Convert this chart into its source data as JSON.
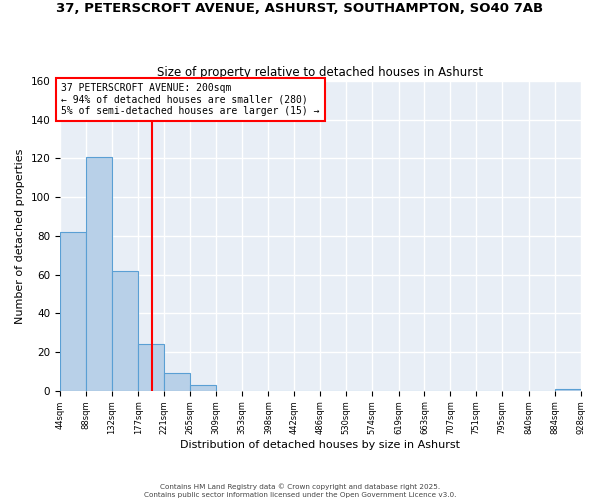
{
  "title": "37, PETERSCROFT AVENUE, ASHURST, SOUTHAMPTON, SO40 7AB",
  "subtitle": "Size of property relative to detached houses in Ashurst",
  "xlabel": "Distribution of detached houses by size in Ashurst",
  "ylabel": "Number of detached properties",
  "bin_edges": [
    44,
    88,
    132,
    177,
    221,
    265,
    309,
    353,
    398,
    442,
    486,
    530,
    574,
    619,
    663,
    707,
    751,
    795,
    840,
    884,
    928
  ],
  "counts": [
    82,
    121,
    62,
    24,
    9,
    3,
    0,
    0,
    0,
    0,
    0,
    0,
    0,
    0,
    0,
    0,
    0,
    0,
    0,
    1
  ],
  "bar_color": "#b8d0e8",
  "bar_edge_color": "#5a9fd4",
  "vline_x": 200,
  "vline_color": "red",
  "annotation_text": "37 PETERSCROFT AVENUE: 200sqm\n← 94% of detached houses are smaller (280)\n5% of semi-detached houses are larger (15) →",
  "annotation_box_color": "white",
  "annotation_box_edge_color": "red",
  "ylim": [
    0,
    160
  ],
  "yticks": [
    0,
    20,
    40,
    60,
    80,
    100,
    120,
    140,
    160
  ],
  "plot_bg_color": "#e8eef6",
  "figure_bg_color": "#ffffff",
  "grid_color": "white",
  "footer1": "Contains HM Land Registry data © Crown copyright and database right 2025.",
  "footer2": "Contains public sector information licensed under the Open Government Licence v3.0."
}
